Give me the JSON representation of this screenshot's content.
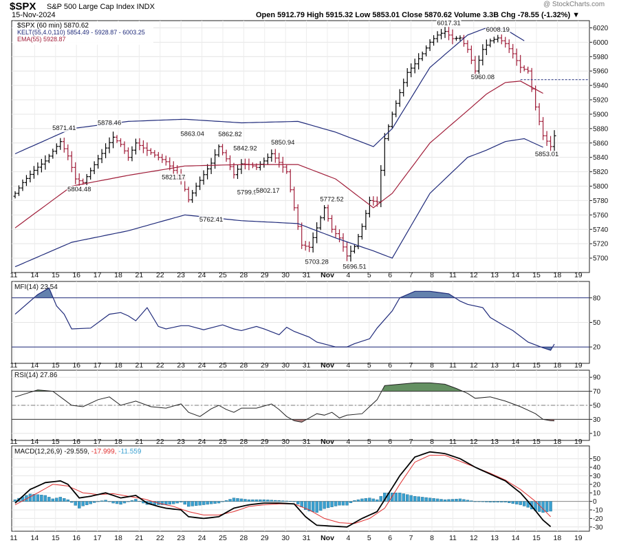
{
  "header": {
    "symbol": "$SPX",
    "name": "S&P 500 Large Cap Index  INDX",
    "date": "15-Nov-2024",
    "quote": "Open 5912.79  High 5915.32  Low 5853.01  Close 5870.62  Volume 3.3B  Chg -78.55 (-1.32%) ▼",
    "watermark": "@ StockCharts.com"
  },
  "colors": {
    "price": "#000000",
    "kelt": "#1f2a7a",
    "ema": "#a01c38",
    "down": "#a01c38",
    "mfi_fill": "#5b7aa9",
    "rsi_up": "#5c8a5a",
    "rsi_dn": "#b07a7a",
    "macd_signal": "#e03030",
    "hist": "#3aa0d0"
  },
  "x_axis": {
    "labels": [
      "11",
      "14",
      "15",
      "16",
      "17",
      "18",
      "21",
      "22",
      "23",
      "24",
      "25",
      "28",
      "29",
      "30",
      "31",
      "Nov",
      "4",
      "5",
      "6",
      "7",
      "8",
      "11",
      "12",
      "13",
      "14",
      "15",
      "18",
      "19"
    ]
  },
  "chart_data": [
    {
      "type": "ohlc",
      "panel": "price",
      "legend": [
        "$SPX (60 min) 5870.62",
        "KELT(55,4.0,110) 5854.49 - 5928.87 - 6003.25",
        "EMA(55) 5928.87"
      ],
      "ylim": [
        5680,
        6030
      ],
      "y_ticks": [
        5700,
        5720,
        5740,
        5760,
        5780,
        5800,
        5820,
        5840,
        5860,
        5880,
        5900,
        5920,
        5940,
        5960,
        5980,
        6000,
        6020
      ],
      "close_anchors": [
        [
          0,
          5790
        ],
        [
          2,
          5805
        ],
        [
          5,
          5822
        ],
        [
          8,
          5835
        ],
        [
          12,
          5862
        ],
        [
          14,
          5842
        ],
        [
          16,
          5810
        ],
        [
          18,
          5805
        ],
        [
          22,
          5838
        ],
        [
          26,
          5868
        ],
        [
          28,
          5858
        ],
        [
          30,
          5840
        ],
        [
          32,
          5860
        ],
        [
          34,
          5853
        ],
        [
          38,
          5840
        ],
        [
          40,
          5834
        ],
        [
          42,
          5822
        ],
        [
          44,
          5810
        ],
        [
          46,
          5781
        ],
        [
          48,
          5800
        ],
        [
          52,
          5832
        ],
        [
          54,
          5855
        ],
        [
          56,
          5838
        ],
        [
          58,
          5816
        ],
        [
          60,
          5831
        ],
        [
          62,
          5830
        ],
        [
          64,
          5826
        ],
        [
          66,
          5835
        ],
        [
          68,
          5845
        ],
        [
          70,
          5833
        ],
        [
          72,
          5820
        ],
        [
          74,
          5770
        ],
        [
          76,
          5718
        ],
        [
          78,
          5715
        ],
        [
          80,
          5742
        ],
        [
          82,
          5770
        ],
        [
          84,
          5740
        ],
        [
          86,
          5728
        ],
        [
          88,
          5703
        ],
        [
          90,
          5716
        ],
        [
          92,
          5744
        ],
        [
          94,
          5780
        ],
        [
          96,
          5778
        ],
        [
          98,
          5866
        ],
        [
          100,
          5900
        ],
        [
          102,
          5930
        ],
        [
          104,
          5958
        ],
        [
          106,
          5970
        ],
        [
          108,
          5984
        ],
        [
          110,
          6000
        ],
        [
          112,
          6010
        ],
        [
          114,
          6015
        ],
        [
          116,
          6005
        ],
        [
          118,
          6006
        ],
        [
          120,
          5990
        ],
        [
          122,
          5960
        ],
        [
          124,
          5990
        ],
        [
          126,
          6002
        ],
        [
          128,
          6006
        ],
        [
          130,
          5998
        ],
        [
          132,
          5984
        ],
        [
          134,
          5965
        ],
        [
          136,
          5960
        ],
        [
          138,
          5910
        ],
        [
          140,
          5870
        ],
        [
          142,
          5855
        ],
        [
          143,
          5870
        ]
      ],
      "annotations": [
        {
          "text": "5871.41",
          "idx": 13,
          "value": 5871.41,
          "pos": "above"
        },
        {
          "text": "5804.48",
          "idx": 17,
          "value": 5804.48,
          "pos": "below"
        },
        {
          "text": "5878.46",
          "idx": 25,
          "value": 5878.46,
          "pos": "above"
        },
        {
          "text": "5821.17",
          "idx": 42,
          "value": 5821.17,
          "pos": "below"
        },
        {
          "text": "5863.04",
          "idx": 47,
          "value": 5863.04,
          "pos": "above"
        },
        {
          "text": "5762.41",
          "idx": 52,
          "value": 5762.41,
          "pos": "below"
        },
        {
          "text": "5862.82",
          "idx": 57,
          "value": 5862.82,
          "pos": "above"
        },
        {
          "text": "5842.92",
          "idx": 61,
          "value": 5842.92,
          "pos": "above"
        },
        {
          "text": "5799.98",
          "idx": 62,
          "value": 5799.98,
          "pos": "below"
        },
        {
          "text": "5802.17",
          "idx": 67,
          "value": 5802.17,
          "pos": "below"
        },
        {
          "text": "5850.94",
          "idx": 71,
          "value": 5850.94,
          "pos": "above"
        },
        {
          "text": "5772.52",
          "idx": 84,
          "value": 5772.52,
          "pos": "above"
        },
        {
          "text": "5703.28",
          "idx": 80,
          "value": 5703.28,
          "pos": "below"
        },
        {
          "text": "5696.51",
          "idx": 90,
          "value": 5696.51,
          "pos": "below"
        },
        {
          "text": "6017.31",
          "idx": 115,
          "value": 6017.31,
          "pos": "above"
        },
        {
          "text": "6008.19",
          "idx": 128,
          "value": 6008.19,
          "pos": "above"
        },
        {
          "text": "5960.08",
          "idx": 124,
          "value": 5960.08,
          "pos": "below"
        },
        {
          "text": "5853.01",
          "idx": 141,
          "value": 5853.01,
          "pos": "below"
        }
      ],
      "kelt_upper": [
        [
          0,
          5845
        ],
        [
          15,
          5880
        ],
        [
          30,
          5890
        ],
        [
          45,
          5893
        ],
        [
          60,
          5888
        ],
        [
          75,
          5890
        ],
        [
          85,
          5875
        ],
        [
          95,
          5855
        ],
        [
          100,
          5880
        ],
        [
          110,
          5965
        ],
        [
          120,
          6010
        ],
        [
          125,
          6020
        ],
        [
          130,
          6018
        ],
        [
          135,
          6002
        ]
      ],
      "kelt_middle": [
        [
          0,
          5742
        ],
        [
          15,
          5800
        ],
        [
          30,
          5815
        ],
        [
          45,
          5828
        ],
        [
          60,
          5830
        ],
        [
          75,
          5830
        ],
        [
          85,
          5810
        ],
        [
          95,
          5770
        ],
        [
          100,
          5790
        ],
        [
          110,
          5860
        ],
        [
          120,
          5905
        ],
        [
          125,
          5928
        ],
        [
          130,
          5944
        ],
        [
          134,
          5946
        ],
        [
          140,
          5929
        ]
      ],
      "kelt_lower": [
        [
          0,
          5688
        ],
        [
          15,
          5722
        ],
        [
          30,
          5738
        ],
        [
          45,
          5760
        ],
        [
          60,
          5752
        ],
        [
          75,
          5748
        ],
        [
          85,
          5728
        ],
        [
          95,
          5710
        ],
        [
          100,
          5700
        ],
        [
          110,
          5790
        ],
        [
          120,
          5840
        ],
        [
          125,
          5850
        ],
        [
          130,
          5862
        ],
        [
          135,
          5866
        ],
        [
          140,
          5854
        ]
      ],
      "ema_down_from": 134,
      "dashed_ref": 5948
    },
    {
      "type": "line",
      "panel": "mfi",
      "legend": "MFI(14) 23.54",
      "ylim": [
        0,
        100
      ],
      "y_ticks": [
        20,
        50,
        80
      ],
      "overbought": 80,
      "oversold": 20,
      "values": [
        [
          0,
          60
        ],
        [
          6,
          84
        ],
        [
          9,
          92
        ],
        [
          11,
          70
        ],
        [
          13,
          60
        ],
        [
          15,
          42
        ],
        [
          20,
          43
        ],
        [
          25,
          60
        ],
        [
          28,
          62
        ],
        [
          30,
          58
        ],
        [
          32,
          52
        ],
        [
          35,
          68
        ],
        [
          38,
          45
        ],
        [
          40,
          42
        ],
        [
          44,
          46
        ],
        [
          46,
          46
        ],
        [
          50,
          41
        ],
        [
          55,
          47
        ],
        [
          58,
          42
        ],
        [
          60,
          40
        ],
        [
          64,
          45
        ],
        [
          66,
          42
        ],
        [
          70,
          35
        ],
        [
          72,
          44
        ],
        [
          74,
          39
        ],
        [
          78,
          32
        ],
        [
          80,
          26
        ],
        [
          85,
          20
        ],
        [
          88,
          20
        ],
        [
          90,
          24
        ],
        [
          94,
          30
        ],
        [
          96,
          43
        ],
        [
          100,
          64
        ],
        [
          102,
          80
        ],
        [
          106,
          88
        ],
        [
          110,
          88
        ],
        [
          115,
          85
        ],
        [
          118,
          76
        ],
        [
          120,
          72
        ],
        [
          124,
          68
        ],
        [
          126,
          56
        ],
        [
          130,
          45
        ],
        [
          132,
          40
        ],
        [
          136,
          26
        ],
        [
          140,
          19
        ],
        [
          142,
          16
        ],
        [
          143,
          23.54
        ]
      ]
    },
    {
      "type": "line",
      "panel": "rsi",
      "legend": "RSI(14) 27.86",
      "ylim": [
        0,
        100
      ],
      "y_ticks": [
        10,
        30,
        50,
        70,
        90
      ],
      "overbought": 70,
      "oversold": 30,
      "midline": 50,
      "values": [
        [
          0,
          62
        ],
        [
          6,
          72
        ],
        [
          10,
          70
        ],
        [
          13,
          58
        ],
        [
          15,
          50
        ],
        [
          18,
          48
        ],
        [
          22,
          58
        ],
        [
          25,
          62
        ],
        [
          28,
          50
        ],
        [
          32,
          56
        ],
        [
          36,
          48
        ],
        [
          40,
          46
        ],
        [
          44,
          52
        ],
        [
          46,
          40
        ],
        [
          49,
          34
        ],
        [
          52,
          45
        ],
        [
          54,
          50
        ],
        [
          56,
          44
        ],
        [
          58,
          40
        ],
        [
          60,
          46
        ],
        [
          64,
          46
        ],
        [
          68,
          52
        ],
        [
          70,
          44
        ],
        [
          72,
          34
        ],
        [
          74,
          28
        ],
        [
          76,
          26
        ],
        [
          80,
          38
        ],
        [
          82,
          36
        ],
        [
          84,
          40
        ],
        [
          86,
          32
        ],
        [
          88,
          36
        ],
        [
          92,
          38
        ],
        [
          96,
          58
        ],
        [
          98,
          78
        ],
        [
          102,
          80
        ],
        [
          106,
          82
        ],
        [
          110,
          82
        ],
        [
          114,
          80
        ],
        [
          117,
          74
        ],
        [
          120,
          67
        ],
        [
          122,
          60
        ],
        [
          126,
          62
        ],
        [
          130,
          56
        ],
        [
          134,
          48
        ],
        [
          138,
          38
        ],
        [
          140,
          30
        ],
        [
          142,
          28
        ],
        [
          143,
          27.86
        ]
      ]
    },
    {
      "type": "line",
      "panel": "macd",
      "legend": "MACD(12,26,9) -29.559, -17.999, -11.559",
      "legend_parts": [
        "MACD(12,26,9) -29.559,",
        "-17.999,",
        "-11.559"
      ],
      "ylim": [
        -35,
        65
      ],
      "y_ticks": [
        -30,
        -20,
        -10,
        0,
        10,
        20,
        30,
        40,
        50
      ],
      "macd": [
        [
          0,
          -2
        ],
        [
          4,
          14
        ],
        [
          8,
          22
        ],
        [
          12,
          24
        ],
        [
          14,
          20
        ],
        [
          17,
          4
        ],
        [
          20,
          6
        ],
        [
          24,
          10
        ],
        [
          28,
          4
        ],
        [
          32,
          7
        ],
        [
          35,
          -2
        ],
        [
          38,
          -6
        ],
        [
          40,
          -8
        ],
        [
          44,
          -10
        ],
        [
          46,
          -18
        ],
        [
          50,
          -20
        ],
        [
          54,
          -18
        ],
        [
          58,
          -8
        ],
        [
          62,
          -4
        ],
        [
          66,
          -2
        ],
        [
          70,
          -2
        ],
        [
          74,
          -3
        ],
        [
          77,
          -18
        ],
        [
          80,
          -28
        ],
        [
          84,
          -29
        ],
        [
          88,
          -30
        ],
        [
          92,
          -20
        ],
        [
          96,
          -12
        ],
        [
          98,
          2
        ],
        [
          102,
          30
        ],
        [
          106,
          52
        ],
        [
          110,
          58
        ],
        [
          114,
          56
        ],
        [
          118,
          50
        ],
        [
          122,
          40
        ],
        [
          126,
          32
        ],
        [
          130,
          24
        ],
        [
          134,
          10
        ],
        [
          136,
          0
        ],
        [
          140,
          -22
        ],
        [
          142,
          -29.559
        ]
      ],
      "signal": [
        [
          0,
          -4
        ],
        [
          6,
          10
        ],
        [
          10,
          20
        ],
        [
          14,
          18
        ],
        [
          18,
          10
        ],
        [
          22,
          8
        ],
        [
          26,
          9
        ],
        [
          30,
          6
        ],
        [
          34,
          3
        ],
        [
          38,
          -2
        ],
        [
          42,
          -6
        ],
        [
          46,
          -12
        ],
        [
          50,
          -16
        ],
        [
          54,
          -16
        ],
        [
          58,
          -12
        ],
        [
          62,
          -6
        ],
        [
          66,
          -4
        ],
        [
          70,
          -3
        ],
        [
          74,
          -3
        ],
        [
          78,
          -10
        ],
        [
          82,
          -20
        ],
        [
          86,
          -25
        ],
        [
          90,
          -26
        ],
        [
          94,
          -20
        ],
        [
          98,
          -8
        ],
        [
          102,
          20
        ],
        [
          106,
          46
        ],
        [
          110,
          54
        ],
        [
          114,
          54
        ],
        [
          118,
          47
        ],
        [
          122,
          40
        ],
        [
          126,
          33
        ],
        [
          130,
          25
        ],
        [
          134,
          14
        ],
        [
          138,
          0
        ],
        [
          142,
          -17.999
        ]
      ]
    }
  ]
}
